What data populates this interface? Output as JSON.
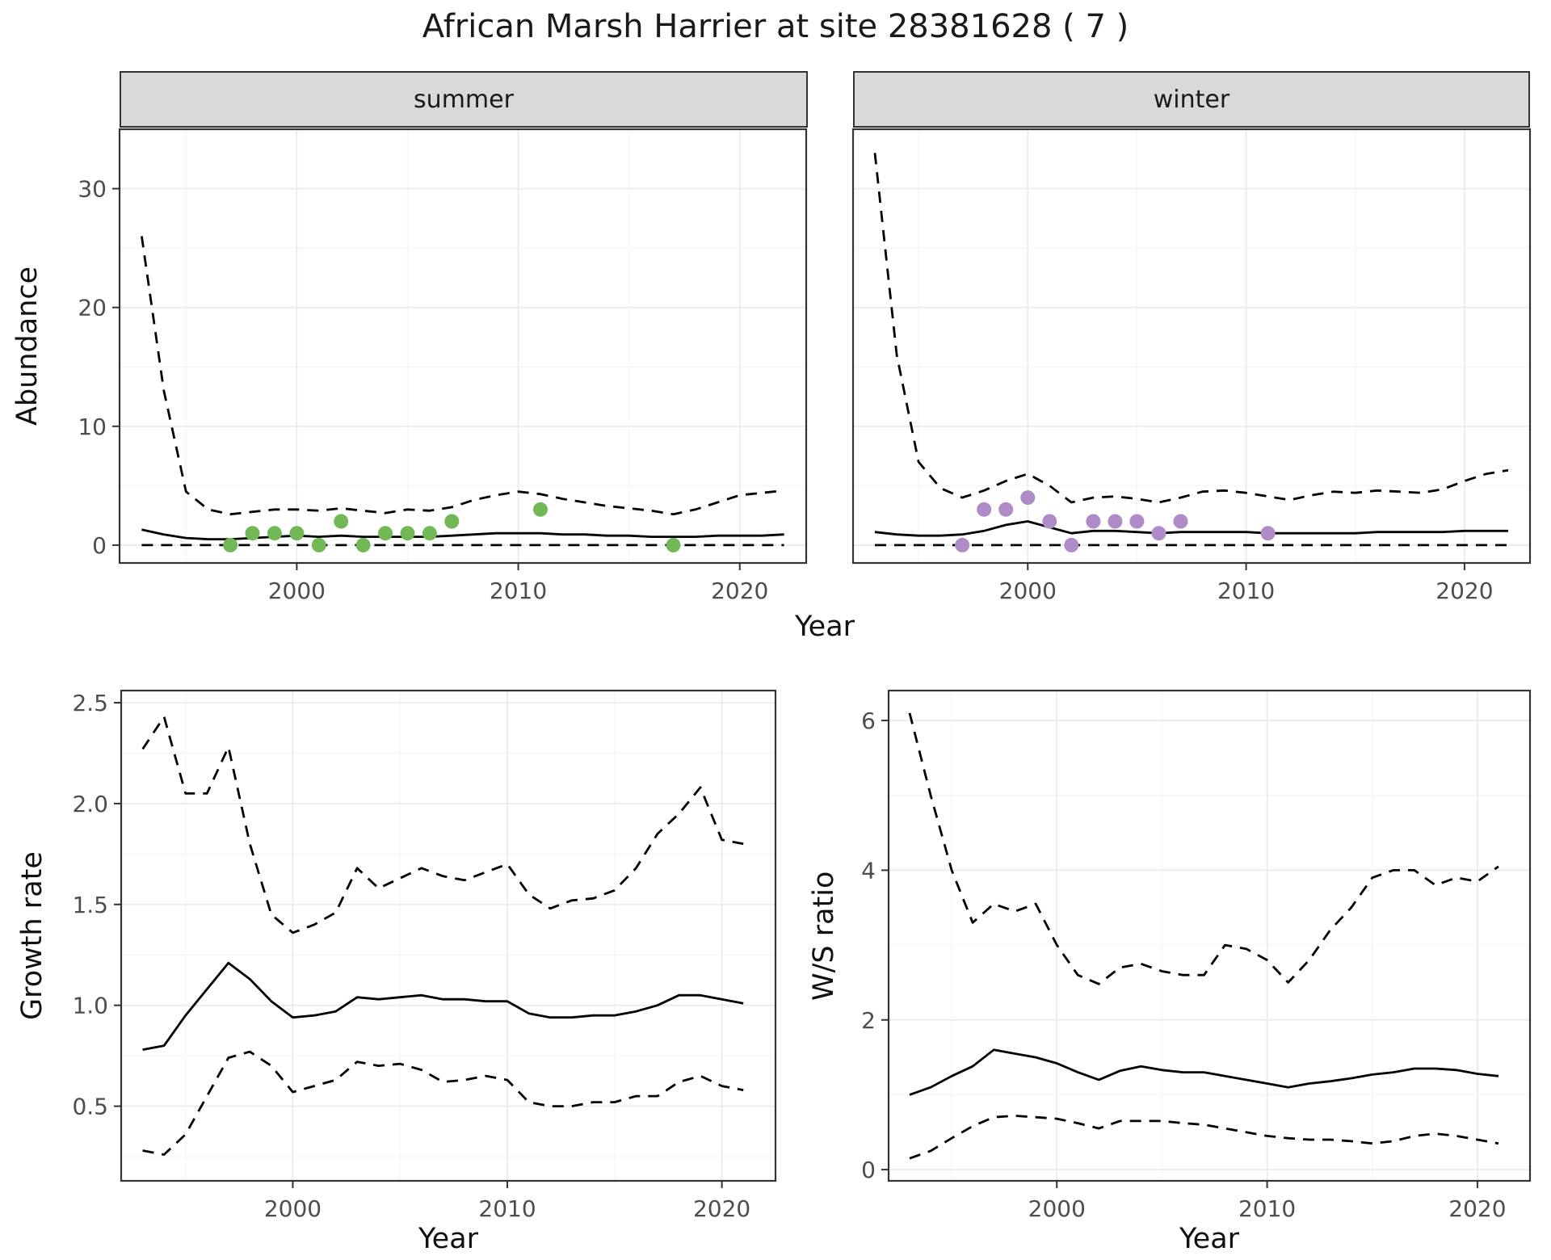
{
  "title": "African Marsh Harrier at site 28381628 ( 7 )",
  "axis_labels": {
    "year": "Year",
    "abundance": "Abundance",
    "growth_rate": "Growth rate",
    "ws_ratio": "W/S ratio"
  },
  "facets": [
    {
      "label": "summer"
    },
    {
      "label": "winter"
    }
  ],
  "colors": {
    "summer_point": "#73b857",
    "winter_point": "#af8cc8",
    "line": "#000000",
    "strip_bg": "#d9d9d9",
    "strip_border": "#333333",
    "panel_border": "#333333",
    "grid_major": "#ebebeb",
    "grid_minor": "#f6f6f6",
    "tick_label": "#4d4d4d"
  },
  "chart_data": [
    {
      "id": "abundance-summer",
      "type": "line",
      "facet": "summer",
      "xlabel": "Year",
      "ylabel": "Abundance",
      "xlim": [
        1992,
        2023
      ],
      "ylim": [
        -1.5,
        35
      ],
      "xticks": [
        2000,
        2010,
        2020
      ],
      "xtick_labels": [
        "2000",
        "2010",
        "2020"
      ],
      "yticks": [
        0,
        10,
        20,
        30
      ],
      "ytick_labels": [
        "0",
        "10",
        "20",
        "30"
      ],
      "grid": true,
      "x": [
        1993,
        1994,
        1995,
        1996,
        1997,
        1998,
        1999,
        2000,
        2001,
        2002,
        2003,
        2004,
        2005,
        2006,
        2007,
        2008,
        2009,
        2010,
        2011,
        2012,
        2013,
        2014,
        2015,
        2016,
        2017,
        2018,
        2019,
        2020,
        2021,
        2022
      ],
      "series": [
        {
          "name": "upper_ci",
          "style": "dashed",
          "values": [
            26,
            13,
            4.5,
            3,
            2.6,
            2.8,
            3,
            3,
            2.9,
            3.1,
            2.9,
            2.7,
            3,
            2.9,
            3.2,
            3.8,
            4.2,
            4.5,
            4.3,
            3.9,
            3.6,
            3.3,
            3.1,
            2.9,
            2.6,
            3,
            3.6,
            4.2,
            4.4,
            4.6
          ]
        },
        {
          "name": "estimate",
          "style": "solid",
          "values": [
            1.3,
            0.9,
            0.6,
            0.5,
            0.5,
            0.6,
            0.7,
            0.8,
            0.7,
            0.8,
            0.7,
            0.7,
            0.7,
            0.7,
            0.8,
            0.9,
            1,
            1,
            1,
            0.9,
            0.9,
            0.8,
            0.8,
            0.7,
            0.7,
            0.7,
            0.8,
            0.8,
            0.8,
            0.9
          ]
        },
        {
          "name": "lower_ci",
          "style": "dashed",
          "values": [
            0,
            0,
            0,
            0,
            0,
            0,
            0,
            0,
            0,
            0,
            0,
            0,
            0,
            0,
            0,
            0,
            0,
            0,
            0,
            0,
            0,
            0,
            0,
            0,
            0,
            0,
            0,
            0,
            0,
            0
          ]
        }
      ],
      "points": {
        "name": "observed-counts-summer",
        "color": "#73b857",
        "x": [
          1997,
          1998,
          1999,
          2000,
          2001,
          2002,
          2003,
          2004,
          2005,
          2006,
          2007,
          2011,
          2017
        ],
        "y": [
          0,
          1,
          1,
          1,
          0,
          2,
          0,
          1,
          1,
          1,
          2,
          3,
          0
        ]
      }
    },
    {
      "id": "abundance-winter",
      "type": "line",
      "facet": "winter",
      "xlabel": "Year",
      "ylabel": "Abundance",
      "xlim": [
        1992,
        2023
      ],
      "ylim": [
        -1.5,
        35
      ],
      "xticks": [
        2000,
        2010,
        2020
      ],
      "xtick_labels": [
        "2000",
        "2010",
        "2020"
      ],
      "yticks": [
        0,
        10,
        20,
        30
      ],
      "ytick_labels": [
        "0",
        "10",
        "20",
        "30"
      ],
      "grid": true,
      "x": [
        1993,
        1994,
        1995,
        1996,
        1997,
        1998,
        1999,
        2000,
        2001,
        2002,
        2003,
        2004,
        2005,
        2006,
        2007,
        2008,
        2009,
        2010,
        2011,
        2012,
        2013,
        2014,
        2015,
        2016,
        2017,
        2018,
        2019,
        2020,
        2021,
        2022
      ],
      "series": [
        {
          "name": "upper_ci",
          "style": "dashed",
          "values": [
            33,
            16,
            7,
            4.8,
            4,
            4.6,
            5.4,
            6,
            5,
            3.6,
            4,
            4.1,
            3.9,
            3.6,
            4,
            4.5,
            4.6,
            4.4,
            4.1,
            3.8,
            4.2,
            4.5,
            4.4,
            4.6,
            4.5,
            4.4,
            4.7,
            5.4,
            6,
            6.3
          ]
        },
        {
          "name": "estimate",
          "style": "solid",
          "values": [
            1.1,
            0.9,
            0.8,
            0.8,
            0.9,
            1.2,
            1.7,
            2,
            1.5,
            1,
            1.2,
            1.2,
            1.1,
            1,
            1.1,
            1.1,
            1.1,
            1.1,
            1,
            1,
            1,
            1,
            1,
            1.1,
            1.1,
            1.1,
            1.1,
            1.2,
            1.2,
            1.2
          ]
        },
        {
          "name": "lower_ci",
          "style": "dashed",
          "values": [
            0,
            0,
            0,
            0,
            0,
            0,
            0,
            0,
            0,
            0,
            0,
            0,
            0,
            0,
            0,
            0,
            0,
            0,
            0,
            0,
            0,
            0,
            0,
            0,
            0,
            0,
            0,
            0,
            0,
            0
          ]
        }
      ],
      "points": {
        "name": "observed-counts-winter",
        "color": "#af8cc8",
        "x": [
          1997,
          1998,
          1999,
          2000,
          2001,
          2002,
          2003,
          2004,
          2005,
          2006,
          2007,
          2011
        ],
        "y": [
          0,
          3,
          3,
          4,
          2,
          0,
          2,
          2,
          2,
          1,
          2,
          1
        ]
      }
    },
    {
      "id": "growth-rate",
      "type": "line",
      "xlabel": "Year",
      "ylabel": "Growth rate",
      "xlim": [
        1992,
        2022.5
      ],
      "ylim": [
        0.13,
        2.56
      ],
      "xticks": [
        2000,
        2010,
        2020
      ],
      "xtick_labels": [
        "2000",
        "2010",
        "2020"
      ],
      "yticks": [
        0.5,
        1.0,
        1.5,
        2.0,
        2.5
      ],
      "ytick_labels": [
        "0.5",
        "1.0",
        "1.5",
        "2.0",
        "2.5"
      ],
      "grid": true,
      "x": [
        1993,
        1994,
        1995,
        1996,
        1997,
        1998,
        1999,
        2000,
        2001,
        2002,
        2003,
        2004,
        2005,
        2006,
        2007,
        2008,
        2009,
        2010,
        2011,
        2012,
        2013,
        2014,
        2015,
        2016,
        2017,
        2018,
        2019,
        2020,
        2021
      ],
      "series": [
        {
          "name": "upper_ci",
          "style": "dashed",
          "values": [
            2.27,
            2.43,
            2.05,
            2.05,
            2.28,
            1.8,
            1.45,
            1.36,
            1.4,
            1.46,
            1.68,
            1.58,
            1.63,
            1.68,
            1.64,
            1.62,
            1.66,
            1.7,
            1.55,
            1.48,
            1.52,
            1.53,
            1.57,
            1.68,
            1.85,
            1.95,
            2.08,
            1.82,
            1.8
          ]
        },
        {
          "name": "estimate",
          "style": "solid",
          "values": [
            0.78,
            0.8,
            0.95,
            1.08,
            1.21,
            1.13,
            1.02,
            0.94,
            0.95,
            0.97,
            1.04,
            1.03,
            1.04,
            1.05,
            1.03,
            1.03,
            1.02,
            1.02,
            0.96,
            0.94,
            0.94,
            0.95,
            0.95,
            0.97,
            1,
            1.05,
            1.05,
            1.03,
            1.01
          ]
        },
        {
          "name": "lower_ci",
          "style": "dashed",
          "values": [
            0.28,
            0.26,
            0.36,
            0.55,
            0.74,
            0.77,
            0.7,
            0.57,
            0.6,
            0.63,
            0.72,
            0.7,
            0.71,
            0.68,
            0.62,
            0.63,
            0.65,
            0.63,
            0.52,
            0.5,
            0.5,
            0.52,
            0.52,
            0.55,
            0.55,
            0.62,
            0.65,
            0.6,
            0.58
          ]
        }
      ]
    },
    {
      "id": "ws-ratio",
      "type": "line",
      "xlabel": "Year",
      "ylabel": "W/S ratio",
      "xlim": [
        1992,
        2022.5
      ],
      "ylim": [
        -0.15,
        6.4
      ],
      "xticks": [
        2000,
        2010,
        2020
      ],
      "xtick_labels": [
        "2000",
        "2010",
        "2020"
      ],
      "yticks": [
        0,
        2,
        4,
        6
      ],
      "ytick_labels": [
        "0",
        "2",
        "4",
        "6"
      ],
      "grid": true,
      "x": [
        1993,
        1994,
        1995,
        1996,
        1997,
        1998,
        1999,
        2000,
        2001,
        2002,
        2003,
        2004,
        2005,
        2006,
        2007,
        2008,
        2009,
        2010,
        2011,
        2012,
        2013,
        2014,
        2015,
        2016,
        2017,
        2018,
        2019,
        2020,
        2021
      ],
      "series": [
        {
          "name": "upper_ci",
          "style": "dashed",
          "values": [
            6.1,
            5,
            4,
            3.3,
            3.55,
            3.45,
            3.55,
            3,
            2.6,
            2.48,
            2.7,
            2.75,
            2.65,
            2.6,
            2.6,
            3,
            2.95,
            2.8,
            2.5,
            2.8,
            3.2,
            3.5,
            3.9,
            4,
            4,
            3.8,
            3.9,
            3.85,
            4.05
          ]
        },
        {
          "name": "estimate",
          "style": "solid",
          "values": [
            1,
            1.1,
            1.25,
            1.38,
            1.6,
            1.55,
            1.5,
            1.42,
            1.3,
            1.2,
            1.32,
            1.38,
            1.33,
            1.3,
            1.3,
            1.25,
            1.2,
            1.15,
            1.1,
            1.15,
            1.18,
            1.22,
            1.27,
            1.3,
            1.35,
            1.35,
            1.33,
            1.28,
            1.25
          ]
        },
        {
          "name": "lower_ci",
          "style": "dashed",
          "values": [
            0.15,
            0.25,
            0.42,
            0.58,
            0.7,
            0.72,
            0.7,
            0.68,
            0.62,
            0.55,
            0.65,
            0.65,
            0.65,
            0.62,
            0.6,
            0.55,
            0.5,
            0.45,
            0.42,
            0.4,
            0.4,
            0.38,
            0.35,
            0.38,
            0.45,
            0.48,
            0.45,
            0.4,
            0.35
          ]
        }
      ]
    }
  ]
}
